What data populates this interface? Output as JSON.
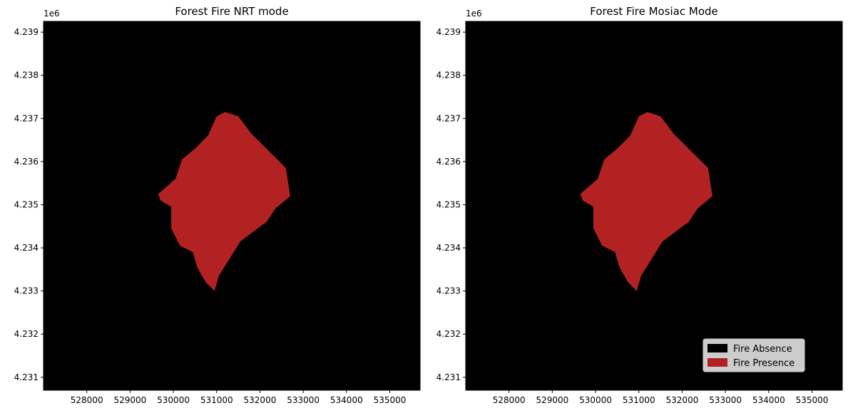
{
  "chart_data": [
    {
      "type": "heatmap",
      "title": "Forest Fire NRT mode",
      "offset_label": "1e6",
      "xlim": [
        527000,
        535700
      ],
      "ylim": [
        4230700,
        4239250
      ],
      "x_ticks": [
        528000,
        529000,
        530000,
        531000,
        532000,
        533000,
        534000,
        535000
      ],
      "x_tick_labels": [
        "528000",
        "529000",
        "530000",
        "531000",
        "532000",
        "533000",
        "534000",
        "535000"
      ],
      "y_ticks": [
        4231000,
        4232000,
        4233000,
        4234000,
        4235000,
        4236000,
        4237000,
        4238000,
        4239000
      ],
      "y_tick_labels": [
        "4.231",
        "4.232",
        "4.233",
        "4.234",
        "4.235",
        "4.236",
        "4.237",
        "4.238",
        "4.239"
      ],
      "classes": [
        {
          "value": 0,
          "color": "#000000"
        },
        {
          "value": 1,
          "color": "#b22222"
        }
      ],
      "fire_polygon": [
        [
          531200,
          4237150
        ],
        [
          531500,
          4237050
        ],
        [
          531800,
          4236650
        ],
        [
          532200,
          4236250
        ],
        [
          532600,
          4235850
        ],
        [
          532700,
          4235200
        ],
        [
          532350,
          4234900
        ],
        [
          532150,
          4234600
        ],
        [
          531950,
          4234450
        ],
        [
          531550,
          4234150
        ],
        [
          531300,
          4233750
        ],
        [
          531050,
          4233350
        ],
        [
          530950,
          4233000
        ],
        [
          530750,
          4233200
        ],
        [
          530550,
          4233550
        ],
        [
          530450,
          4233900
        ],
        [
          530150,
          4234050
        ],
        [
          529950,
          4234450
        ],
        [
          529950,
          4234950
        ],
        [
          529700,
          4235100
        ],
        [
          529650,
          4235250
        ],
        [
          530050,
          4235600
        ],
        [
          530200,
          4236050
        ],
        [
          530500,
          4236300
        ],
        [
          530800,
          4236600
        ],
        [
          531000,
          4237050
        ]
      ],
      "legend": null
    },
    {
      "type": "heatmap",
      "title": "Forest Fire Mosiac Mode",
      "offset_label": "1e6",
      "xlim": [
        527000,
        535700
      ],
      "ylim": [
        4230700,
        4239250
      ],
      "x_ticks": [
        528000,
        529000,
        530000,
        531000,
        532000,
        533000,
        534000,
        535000
      ],
      "x_tick_labels": [
        "528000",
        "529000",
        "530000",
        "531000",
        "532000",
        "533000",
        "534000",
        "535000"
      ],
      "y_ticks": [
        4231000,
        4232000,
        4233000,
        4234000,
        4235000,
        4236000,
        4237000,
        4238000,
        4239000
      ],
      "y_tick_labels": [
        "4.231",
        "4.232",
        "4.233",
        "4.234",
        "4.235",
        "4.236",
        "4.237",
        "4.238",
        "4.239"
      ],
      "classes": [
        {
          "value": 0,
          "color": "#000000"
        },
        {
          "value": 1,
          "color": "#b22222"
        }
      ],
      "fire_polygon": [
        [
          531200,
          4237150
        ],
        [
          531500,
          4237050
        ],
        [
          531800,
          4236650
        ],
        [
          532200,
          4236250
        ],
        [
          532600,
          4235850
        ],
        [
          532700,
          4235200
        ],
        [
          532350,
          4234900
        ],
        [
          532150,
          4234600
        ],
        [
          531950,
          4234450
        ],
        [
          531550,
          4234150
        ],
        [
          531300,
          4233750
        ],
        [
          531050,
          4233350
        ],
        [
          530950,
          4233000
        ],
        [
          530750,
          4233200
        ],
        [
          530550,
          4233550
        ],
        [
          530450,
          4233900
        ],
        [
          530150,
          4234050
        ],
        [
          529950,
          4234450
        ],
        [
          529950,
          4234950
        ],
        [
          529700,
          4235100
        ],
        [
          529650,
          4235250
        ],
        [
          530050,
          4235600
        ],
        [
          530200,
          4236050
        ],
        [
          530500,
          4236300
        ],
        [
          530800,
          4236600
        ],
        [
          531000,
          4237050
        ]
      ],
      "legend": {
        "placement": "lower-right",
        "entries": [
          {
            "label": "Fire Absence",
            "color": "#000000"
          },
          {
            "label": "Fire Presence",
            "color": "#b22222"
          }
        ]
      }
    }
  ]
}
